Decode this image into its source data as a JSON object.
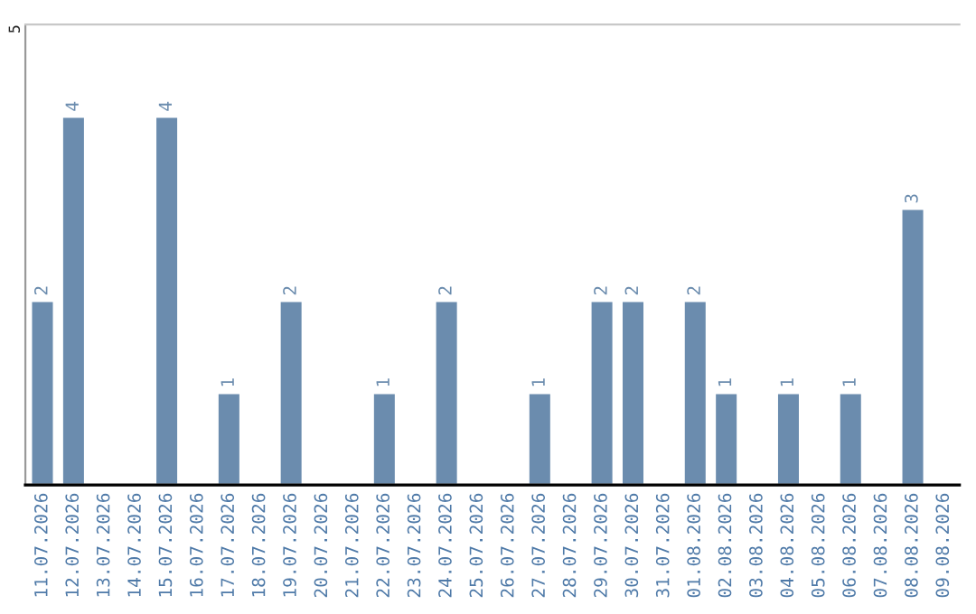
{
  "chart_data": {
    "type": "bar",
    "categories": [
      "11.07.2026",
      "12.07.2026",
      "13.07.2026",
      "14.07.2026",
      "15.07.2026",
      "16.07.2026",
      "17.07.2026",
      "18.07.2026",
      "19.07.2026",
      "20.07.2026",
      "21.07.2026",
      "22.07.2026",
      "23.07.2026",
      "24.07.2026",
      "25.07.2026",
      "26.07.2026",
      "27.07.2026",
      "28.07.2026",
      "29.07.2026",
      "30.07.2026",
      "31.07.2026",
      "01.08.2026",
      "02.08.2026",
      "03.08.2026",
      "04.08.2026",
      "05.08.2026",
      "06.08.2026",
      "07.08.2026",
      "08.08.2026",
      "09.08.2026"
    ],
    "values": [
      2,
      4,
      null,
      null,
      4,
      null,
      1,
      null,
      2,
      null,
      null,
      1,
      null,
      2,
      null,
      null,
      1,
      null,
      2,
      2,
      null,
      2,
      1,
      null,
      1,
      null,
      1,
      null,
      3,
      null
    ],
    "value_labels": [
      "2",
      "4",
      null,
      null,
      "4",
      null,
      "1",
      null,
      "2",
      null,
      null,
      "1",
      null,
      "2",
      null,
      null,
      "1",
      null,
      "2",
      "2",
      null,
      "2",
      "1",
      null,
      "1",
      null,
      "1",
      null,
      "3",
      null
    ],
    "color": "#6b8cae",
    "ylim": [
      0,
      5
    ],
    "yticks": [
      5
    ]
  }
}
